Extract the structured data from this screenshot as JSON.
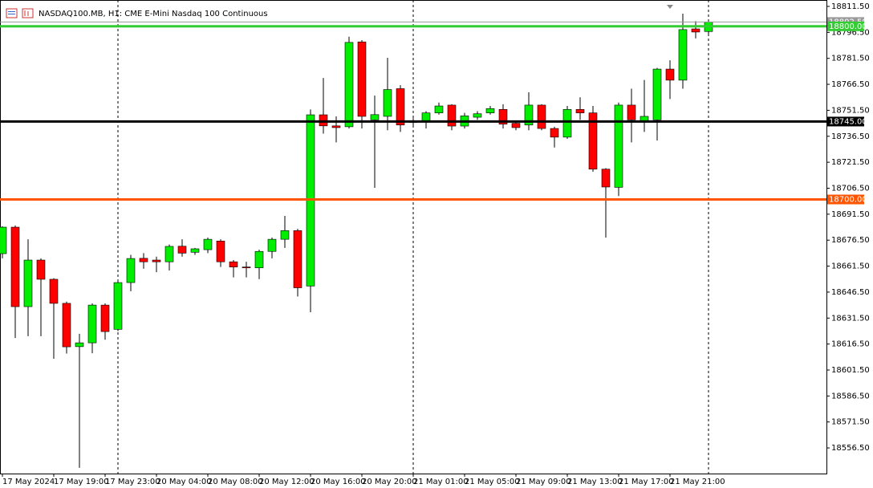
{
  "chart_data": {
    "type": "candlestick",
    "title": "NASDAQ100.MB, H1:  CME E-Mini Nasdaq 100 Continuous",
    "categories": [
      "17 May 2024",
      null,
      null,
      null,
      "17 May 19:00",
      null,
      null,
      null,
      "17 May 23:00",
      null,
      null,
      null,
      "20 May 04:00",
      null,
      null,
      null,
      "20 May 08:00",
      null,
      null,
      null,
      "20 May 12:00",
      null,
      null,
      null,
      "20 May 16:00",
      null,
      null,
      null,
      "20 May 20:00",
      null,
      null,
      null,
      "21 May 01:00",
      null,
      null,
      null,
      "21 May 05:00",
      null,
      null,
      null,
      "21 May 09:00",
      null,
      null,
      null,
      "21 May 13:00",
      null,
      null,
      null,
      "21 May 17:00",
      null,
      null,
      null,
      "21 May 21:00",
      null,
      null,
      null
    ],
    "open": [
      18668.7,
      18684.0,
      18638.1,
      18665.0,
      18653.9,
      18640.0,
      18615.0,
      18617.2,
      18639.0,
      18625.0,
      18652.0,
      18666.0,
      18665.0,
      18664.0,
      18673.0,
      18669.5,
      18671.0,
      18676.0,
      18664.0,
      18661.0,
      18660.5,
      18670.0,
      18677.0,
      18682.0,
      18650.0,
      18748.9,
      18742.5,
      18742.0,
      18791.0,
      18746.0,
      18748.0,
      18764.0,
      18745.5,
      18745.0,
      18750.0,
      18754.5,
      18742.4,
      18747.5,
      18750.0,
      18752.0,
      18744.0,
      18743.0,
      18754.5,
      18741.0,
      18736.0,
      18752.0,
      18750.0,
      18717.5,
      18707.0,
      18754.5,
      18745.0,
      18746.0,
      18775.3,
      18768.9,
      18798.5,
      18797.0
    ],
    "high": [
      18684.5,
      18685.0,
      18677.0,
      18666.0,
      18654.5,
      18641.0,
      18622.4,
      18640.0,
      18640.0,
      18653.0,
      18668.0,
      18669.0,
      18667.0,
      18674.0,
      18677.0,
      18672.0,
      18678.0,
      18677.0,
      18665.0,
      18664.0,
      18671.0,
      18678.0,
      18690.5,
      18683.0,
      18752.0,
      18770.2,
      18748.0,
      18794.0,
      18792.0,
      18760.0,
      18781.8,
      18766.0,
      18747.0,
      18751.0,
      18756.0,
      18755.0,
      18750.0,
      18751.0,
      18754.0,
      18755.0,
      18745.0,
      18761.9,
      18755.0,
      18742.0,
      18754.0,
      18759.0,
      18754.0,
      18718.0,
      18756.0,
      18764.0,
      18769.0,
      18776.0,
      18780.4,
      18807.3,
      18803.0,
      18803.0
    ],
    "low": [
      18666.0,
      18620.0,
      18621.0,
      18621.0,
      18608.0,
      18611.0,
      18545.0,
      18611.2,
      18619.0,
      18624.0,
      18647.0,
      18660.0,
      18658.0,
      18659.0,
      18667.0,
      18668.0,
      18669.0,
      18661.0,
      18655.0,
      18655.0,
      18654.0,
      18666.0,
      18672.0,
      18644.0,
      18634.9,
      18738.0,
      18733.0,
      18741.0,
      18741.0,
      18706.7,
      18740.0,
      18739.0,
      18742.0,
      18741.0,
      18749.0,
      18740.0,
      18741.0,
      18746.0,
      18749.0,
      18741.0,
      18740.0,
      18740.0,
      18740.0,
      18730.0,
      18735.0,
      18746.0,
      18716.0,
      18678.0,
      18702.0,
      18733.0,
      18739.0,
      18734.0,
      18758.0,
      18764.0,
      18793.0,
      18795.0
    ],
    "close": [
      18684.0,
      18638.1,
      18665.0,
      18653.9,
      18640.0,
      18614.9,
      18617.2,
      18639.0,
      18623.7,
      18652.0,
      18665.9,
      18664.0,
      18664.0,
      18672.9,
      18669.0,
      18671.5,
      18677.0,
      18664.0,
      18661.0,
      18660.5,
      18670.0,
      18677.0,
      18682.0,
      18649.0,
      18748.9,
      18742.5,
      18741.5,
      18790.7,
      18748.0,
      18749.0,
      18763.5,
      18743.0,
      18744.5,
      18750.0,
      18754.0,
      18742.4,
      18748.3,
      18749.5,
      18752.5,
      18743.5,
      18741.5,
      18754.5,
      18741.0,
      18736.0,
      18752.0,
      18750.0,
      18717.5,
      18707.2,
      18754.5,
      18746.0,
      18748.0,
      18775.3,
      18768.9,
      18798.1,
      18796.7,
      18802.5
    ],
    "up_color": "#00ee00",
    "down_color": "#ff0000",
    "ylim": [
      18541.7,
      18815.2
    ],
    "yticks": [
      {
        "value": 18811.5,
        "label": "18811.50"
      },
      {
        "value": 18796.5,
        "label": "18796.50"
      },
      {
        "value": 18781.5,
        "label": "18781.50"
      },
      {
        "value": 18766.5,
        "label": "18766.50"
      },
      {
        "value": 18751.5,
        "label": "18751.50"
      },
      {
        "value": 18736.5,
        "label": "18736.50"
      },
      {
        "value": 18721.5,
        "label": "18721.50"
      },
      {
        "value": 18706.5,
        "label": "18706.50"
      },
      {
        "value": 18691.5,
        "label": "18691.50"
      },
      {
        "value": 18676.5,
        "label": "18676.50"
      },
      {
        "value": 18661.5,
        "label": "18661.50"
      },
      {
        "value": 18646.5,
        "label": "18646.50"
      },
      {
        "value": 18631.5,
        "label": "18631.50"
      },
      {
        "value": 18616.5,
        "label": "18616.50"
      },
      {
        "value": 18601.5,
        "label": "18601.50"
      },
      {
        "value": 18586.5,
        "label": "18586.50"
      },
      {
        "value": 18571.5,
        "label": "18571.50"
      },
      {
        "value": 18556.5,
        "label": "18556.50"
      }
    ],
    "last_price": {
      "value": 18802.5,
      "label": "18802.50",
      "color": "#999999"
    },
    "hlines": [
      {
        "value": 18800,
        "label": "18800.00",
        "color": "#33cc33"
      },
      {
        "value": 18745,
        "label": "18745.00",
        "color": "#000000"
      },
      {
        "value": 18700,
        "label": "18700.00",
        "color": "#ff5500"
      }
    ]
  }
}
